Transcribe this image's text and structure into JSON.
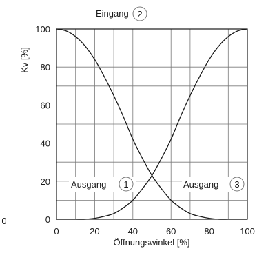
{
  "chart_data": {
    "type": "line",
    "xlabel": "Öffnungswinkel [%]",
    "ylabel": "Kv [%]",
    "xlim": [
      0,
      100
    ],
    "ylim": [
      0,
      100
    ],
    "x_ticks": [
      0,
      20,
      40,
      60,
      80,
      100
    ],
    "y_ticks": [
      0,
      20,
      40,
      60,
      80,
      100
    ],
    "stray_tick_label": "0",
    "grid": true,
    "x": [
      0,
      5,
      10,
      15,
      20,
      25,
      30,
      35,
      40,
      45,
      50,
      55,
      60,
      65,
      70,
      75,
      80,
      85,
      90,
      95,
      100
    ],
    "series": [
      {
        "values": [
          100,
          99,
          96,
          91,
          84,
          75,
          65,
          54,
          42,
          32,
          23,
          16,
          10,
          6,
          3,
          1.5,
          0.5,
          0,
          0,
          0,
          0
        ]
      },
      {
        "values": [
          0,
          0,
          0,
          0,
          0.5,
          1.5,
          3,
          6,
          10,
          16,
          23,
          32,
          42,
          54,
          65,
          75,
          84,
          91,
          96,
          99,
          100
        ]
      }
    ],
    "annotations": [
      {
        "text": "Eingang",
        "badge": "2"
      },
      {
        "text": "Ausgang",
        "badge": "1"
      },
      {
        "text": "Ausgang",
        "badge": "3"
      }
    ]
  }
}
